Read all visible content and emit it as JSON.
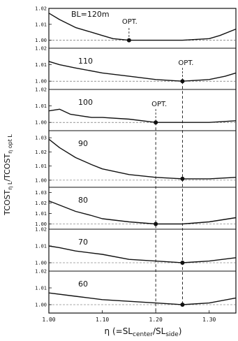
{
  "chart_data": {
    "type": "line",
    "xlabel_main": "η (=SL",
    "xlabel_sub1": "center",
    "xlabel_mid": "/SL",
    "xlabel_sub2": "side",
    "xlabel_end": ")",
    "ylabel": "TCOST",
    "ylabel_sub1": "η L",
    "ylabel_mid": "/TCOST",
    "ylabel_sub2": "η opt L",
    "xlim": [
      1.0,
      1.35
    ],
    "xticks": [
      "1.00",
      "1.10",
      "1.20",
      "1.30"
    ],
    "xtick_values": [
      1.0,
      1.1,
      1.2,
      1.3
    ],
    "panels": [
      {
        "label": "BL=120m",
        "ylim": [
          0.995,
          1.02
        ],
        "yticks": [
          "1.02",
          "1.01",
          "1.00"
        ],
        "ytick_values": [
          1.02,
          1.01,
          1.0
        ],
        "opt_label": "OPT.",
        "opt_x": 1.15,
        "x": [
          1.0,
          1.02,
          1.05,
          1.08,
          1.1,
          1.12,
          1.15,
          1.2,
          1.25,
          1.3,
          1.32,
          1.35
        ],
        "y": [
          1.017,
          1.013,
          1.008,
          1.005,
          1.003,
          1.001,
          1.0,
          1.0,
          1.0,
          1.001,
          1.003,
          1.007
        ]
      },
      {
        "label": "110",
        "ylim": [
          0.995,
          1.02
        ],
        "yticks": [
          "1.02",
          "1.01",
          "1.00"
        ],
        "ytick_values": [
          1.02,
          1.01,
          1.0
        ],
        "opt_label": "OPT.",
        "opt_x": 1.25,
        "x": [
          1.0,
          1.02,
          1.05,
          1.1,
          1.15,
          1.2,
          1.25,
          1.3,
          1.33,
          1.35
        ],
        "y": [
          1.012,
          1.01,
          1.008,
          1.005,
          1.003,
          1.001,
          1.0,
          1.001,
          1.003,
          1.005
        ]
      },
      {
        "label": "100",
        "ylim": [
          0.995,
          1.02
        ],
        "yticks": [
          "1.02",
          "1.01",
          "1.00"
        ],
        "ytick_values": [
          1.02,
          1.01,
          1.0
        ],
        "opt_label": "OPT.",
        "opt_x": 1.2,
        "x": [
          1.0,
          1.02,
          1.04,
          1.06,
          1.08,
          1.1,
          1.15,
          1.2,
          1.25,
          1.3,
          1.35
        ],
        "y": [
          1.007,
          1.008,
          1.005,
          1.004,
          1.003,
          1.003,
          1.002,
          1.0,
          1.0,
          1.0,
          1.001
        ]
      },
      {
        "label": "90",
        "ylim": [
          0.995,
          1.035
        ],
        "yticks": [
          "1.03",
          "1.02",
          "1.01",
          "1.00"
        ],
        "ytick_values": [
          1.03,
          1.02,
          1.01,
          1.0
        ],
        "x": [
          1.0,
          1.02,
          1.05,
          1.08,
          1.1,
          1.15,
          1.2,
          1.25,
          1.3,
          1.35
        ],
        "y": [
          1.029,
          1.023,
          1.016,
          1.011,
          1.008,
          1.004,
          1.002,
          1.001,
          1.001,
          1.002
        ]
      },
      {
        "label": "80",
        "ylim": [
          0.995,
          1.035
        ],
        "yticks": [
          "1.03",
          "1.02",
          "1.01",
          "1.00"
        ],
        "ytick_values": [
          1.03,
          1.02,
          1.01,
          1.0
        ],
        "x": [
          1.0,
          1.02,
          1.05,
          1.08,
          1.1,
          1.15,
          1.2,
          1.25,
          1.3,
          1.35
        ],
        "y": [
          1.022,
          1.018,
          1.012,
          1.008,
          1.005,
          1.002,
          1.0,
          1.0,
          1.002,
          1.006
        ]
      },
      {
        "label": "70",
        "ylim": [
          0.995,
          1.02
        ],
        "yticks": [
          "1.02",
          "1.01",
          "1.00"
        ],
        "ytick_values": [
          1.02,
          1.01,
          1.0
        ],
        "x": [
          1.0,
          1.02,
          1.05,
          1.1,
          1.15,
          1.2,
          1.25,
          1.3,
          1.35
        ],
        "y": [
          1.01,
          1.009,
          1.007,
          1.005,
          1.002,
          1.001,
          1.0,
          1.001,
          1.003
        ]
      },
      {
        "label": "60",
        "ylim": [
          0.995,
          1.02
        ],
        "yticks": [
          "1.02",
          "1.01",
          "1.00"
        ],
        "ytick_values": [
          1.02,
          1.01,
          1.0
        ],
        "x": [
          1.0,
          1.05,
          1.1,
          1.15,
          1.2,
          1.25,
          1.3,
          1.35
        ],
        "y": [
          1.007,
          1.005,
          1.003,
          1.002,
          1.001,
          1.0,
          1.001,
          1.004
        ]
      }
    ]
  }
}
